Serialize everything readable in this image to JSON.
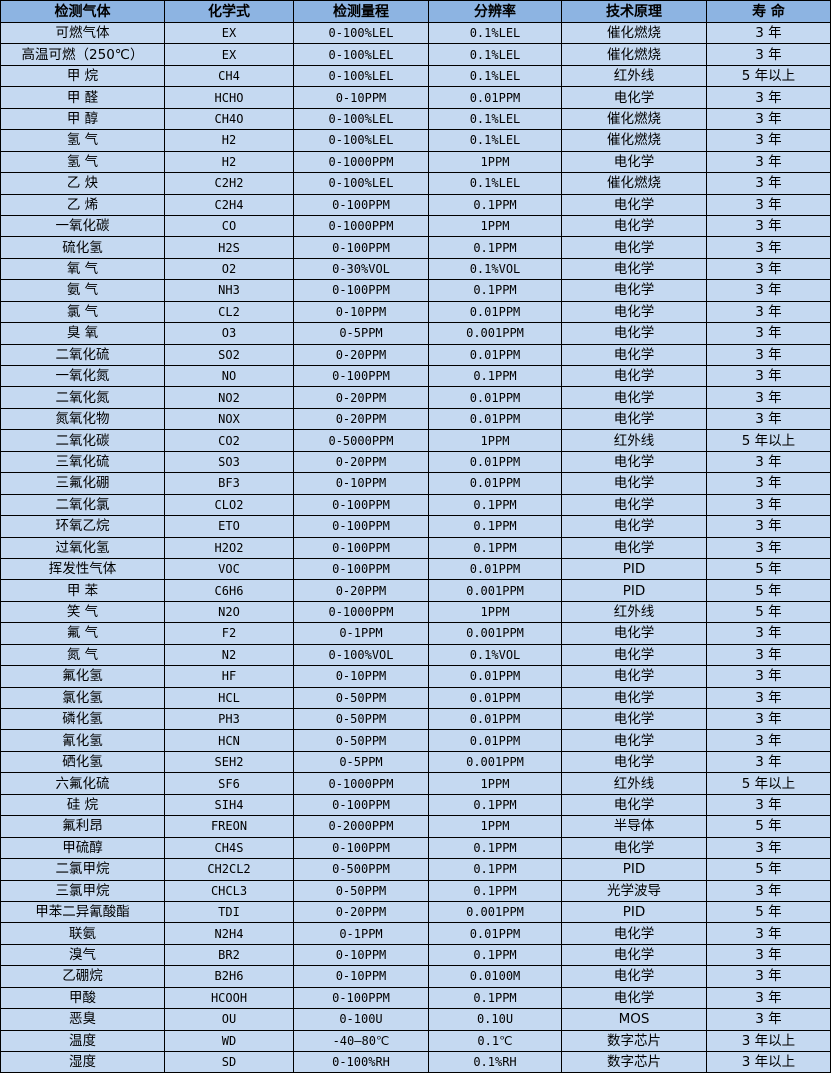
{
  "table": {
    "headers": [
      "检测气体",
      "化学式",
      "检测量程",
      "分辨率",
      "技术原理",
      "寿 命"
    ],
    "rows": [
      [
        "可燃气体",
        "EX",
        "0-100%LEL",
        "0.1%LEL",
        "催化燃烧",
        "3 年"
      ],
      [
        "高温可燃（250℃）",
        "EX",
        "0-100%LEL",
        "0.1%LEL",
        "催化燃烧",
        "3 年"
      ],
      [
        "甲 烷",
        "CH4",
        "0-100%LEL",
        "0.1%LEL",
        "红外线",
        "5 年以上"
      ],
      [
        "甲 醛",
        "HCHO",
        "0-10PPM",
        "0.01PPM",
        "电化学",
        "3 年"
      ],
      [
        "甲 醇",
        "CH4O",
        "0-100%LEL",
        "0.1%LEL",
        "催化燃烧",
        "3 年"
      ],
      [
        "氢 气",
        "H2",
        "0-100%LEL",
        "0.1%LEL",
        "催化燃烧",
        "3 年"
      ],
      [
        "氢 气",
        "H2",
        "0-1000PPM",
        "1PPM",
        "电化学",
        "3 年"
      ],
      [
        "乙 炔",
        "C2H2",
        "0-100%LEL",
        "0.1%LEL",
        "催化燃烧",
        "3 年"
      ],
      [
        "乙 烯",
        "C2H4",
        "0-100PPM",
        "0.1PPM",
        "电化学",
        "3 年"
      ],
      [
        "一氧化碳",
        "CO",
        "0-1000PPM",
        "1PPM",
        "电化学",
        "3 年"
      ],
      [
        "硫化氢",
        "H2S",
        "0-100PPM",
        "0.1PPM",
        "电化学",
        "3 年"
      ],
      [
        "氧 气",
        "O2",
        "0-30%VOL",
        "0.1%VOL",
        "电化学",
        "3 年"
      ],
      [
        "氨 气",
        "NH3",
        "0-100PPM",
        "0.1PPM",
        "电化学",
        "3 年"
      ],
      [
        "氯 气",
        "CL2",
        "0-10PPM",
        "0.01PPM",
        "电化学",
        "3 年"
      ],
      [
        "臭 氧",
        "O3",
        "0-5PPM",
        "0.001PPM",
        "电化学",
        "3 年"
      ],
      [
        "二氧化硫",
        "SO2",
        "0-20PPM",
        "0.01PPM",
        "电化学",
        "3 年"
      ],
      [
        "一氧化氮",
        "NO",
        "0-100PPM",
        "0.1PPM",
        "电化学",
        "3 年"
      ],
      [
        "二氧化氮",
        "NO2",
        "0-20PPM",
        "0.01PPM",
        "电化学",
        "3 年"
      ],
      [
        "氮氧化物",
        "NOX",
        "0-20PPM",
        "0.01PPM",
        "电化学",
        "3 年"
      ],
      [
        "二氧化碳",
        "CO2",
        "0-5000PPM",
        "1PPM",
        "红外线",
        "5 年以上"
      ],
      [
        "三氧化硫",
        "SO3",
        "0-20PPM",
        "0.01PPM",
        "电化学",
        "3 年"
      ],
      [
        "三氟化硼",
        "BF3",
        "0-10PPM",
        "0.01PPM",
        "电化学",
        "3 年"
      ],
      [
        "二氧化氯",
        "CLO2",
        "0-100PPM",
        "0.1PPM",
        "电化学",
        "3 年"
      ],
      [
        "环氧乙烷",
        "ETO",
        "0-100PPM",
        "0.1PPM",
        "电化学",
        "3 年"
      ],
      [
        "过氧化氢",
        "H2O2",
        "0-100PPM",
        "0.1PPM",
        "电化学",
        "3 年"
      ],
      [
        "挥发性气体",
        "VOC",
        "0-100PPM",
        "0.01PPM",
        "PID",
        "5 年"
      ],
      [
        "甲 苯",
        "C6H6",
        "0-20PPM",
        "0.001PPM",
        "PID",
        "5 年"
      ],
      [
        "笑 气",
        "N2O",
        "0-1000PPM",
        "1PPM",
        "红外线",
        "5 年"
      ],
      [
        "氟 气",
        "F2",
        "0-1PPM",
        "0.001PPM",
        "电化学",
        "3 年"
      ],
      [
        "氮 气",
        "N2",
        "0-100%VOL",
        "0.1%VOL",
        "电化学",
        "3 年"
      ],
      [
        "氟化氢",
        "HF",
        "0-10PPM",
        "0.01PPM",
        "电化学",
        "3 年"
      ],
      [
        "氯化氢",
        "HCL",
        "0-50PPM",
        "0.01PPM",
        "电化学",
        "3 年"
      ],
      [
        "磷化氢",
        "PH3",
        "0-50PPM",
        "0.01PPM",
        "电化学",
        "3 年"
      ],
      [
        "氰化氢",
        "HCN",
        "0-50PPM",
        "0.01PPM",
        "电化学",
        "3 年"
      ],
      [
        "硒化氢",
        "SEH2",
        "0-5PPM",
        "0.001PPM",
        "电化学",
        "3 年"
      ],
      [
        "六氟化硫",
        "SF6",
        "0-1000PPM",
        "1PPM",
        "红外线",
        "5 年以上"
      ],
      [
        "硅 烷",
        "SIH4",
        "0-100PPM",
        "0.1PPM",
        "电化学",
        "3 年"
      ],
      [
        "氟利昂",
        "FREON",
        "0-2000PPM",
        "1PPM",
        "半导体",
        "5 年"
      ],
      [
        "甲硫醇",
        "CH4S",
        "0-100PPM",
        "0.1PPM",
        "电化学",
        "3 年"
      ],
      [
        "二氯甲烷",
        "CH2CL2",
        "0-500PPM",
        "0.1PPM",
        "PID",
        "5 年"
      ],
      [
        "三氯甲烷",
        "CHCL3",
        "0-50PPM",
        "0.1PPM",
        "光学波导",
        "3 年"
      ],
      [
        "甲苯二异氰酸酯",
        "TDI",
        "0-20PPM",
        "0.001PPM",
        "PID",
        "5 年"
      ],
      [
        "联氨",
        "N2H4",
        "0-1PPM",
        "0.01PPM",
        "电化学",
        "3 年"
      ],
      [
        "溴气",
        "BR2",
        "0-10PPM",
        "0.1PPM",
        "电化学",
        "3 年"
      ],
      [
        "乙硼烷",
        "B2H6",
        "0-10PPM",
        "0.0100M",
        "电化学",
        "3 年"
      ],
      [
        "甲酸",
        "HCOOH",
        "0-100PPM",
        "0.1PPM",
        "电化学",
        "3 年"
      ],
      [
        "恶臭",
        "OU",
        "0-100U",
        "0.10U",
        "MOS",
        "3 年"
      ],
      [
        "温度",
        "WD",
        "-40—80℃",
        "0.1℃",
        "数字芯片",
        "3 年以上"
      ],
      [
        "湿度",
        "SD",
        "0-100%RH",
        "0.1%RH",
        "数字芯片",
        "3 年以上"
      ]
    ]
  },
  "colors": {
    "header_bg": "#8db4e2",
    "cell_bg": "#c5d9f1",
    "border": "#000000"
  }
}
